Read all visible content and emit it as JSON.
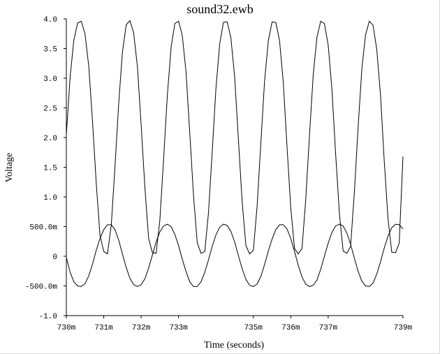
{
  "window": {
    "title": "sound32.ewb"
  },
  "chart_data": {
    "type": "line",
    "title": "sound32.ewb",
    "xlabel": "Time (seconds)",
    "ylabel": "Voltage",
    "xlim": [
      0.73,
      0.739
    ],
    "ylim": [
      -1.0,
      4.0
    ],
    "grid": false,
    "x_ticks": [
      {
        "value": 0.73,
        "label": "730m"
      },
      {
        "value": 0.731,
        "label": "731m"
      },
      {
        "value": 0.732,
        "label": "732m"
      },
      {
        "value": 0.733,
        "label": "733m"
      },
      {
        "value": 0.735,
        "label": "735m"
      },
      {
        "value": 0.736,
        "label": "736m"
      },
      {
        "value": 0.737,
        "label": "737m"
      },
      {
        "value": 0.739,
        "label": "739m"
      }
    ],
    "y_ticks": [
      {
        "value": 4.0,
        "label": "4.0"
      },
      {
        "value": 3.5,
        "label": "3.5"
      },
      {
        "value": 3.0,
        "label": "3.0"
      },
      {
        "value": 2.5,
        "label": "2.5"
      },
      {
        "value": 2.0,
        "label": "2.0"
      },
      {
        "value": 1.5,
        "label": "1.5"
      },
      {
        "value": 1.0,
        "label": "1.0"
      },
      {
        "value": 0.5,
        "label": "500.0m"
      },
      {
        "value": 0.0,
        "label": "0"
      },
      {
        "value": -0.5,
        "label": "-500.0m"
      },
      {
        "value": -1.0,
        "label": "-1.0"
      }
    ],
    "series": [
      {
        "x": [
          0.73,
          0.7301,
          0.7302,
          0.7303,
          0.7304,
          0.7305,
          0.7306,
          0.7307,
          0.7308,
          0.7309,
          0.731,
          0.7311,
          0.7312,
          0.7313,
          0.7314,
          0.7315,
          0.7316,
          0.7317,
          0.7318,
          0.7319,
          0.732,
          0.7321,
          0.7322,
          0.7323,
          0.7324,
          0.7325,
          0.7326,
          0.7327,
          0.7328,
          0.7329,
          0.733,
          0.7331,
          0.7332,
          0.7333,
          0.7334,
          0.7335,
          0.7336,
          0.7337,
          0.7338,
          0.7339,
          0.734,
          0.7341,
          0.7342,
          0.7343,
          0.7344,
          0.7345,
          0.7346,
          0.7347,
          0.7348,
          0.7349,
          0.735,
          0.7351,
          0.7352,
          0.7353,
          0.7354,
          0.7355,
          0.7356,
          0.7357,
          0.7358,
          0.7359,
          0.736,
          0.7361,
          0.7362,
          0.7363,
          0.7364,
          0.7365,
          0.7366,
          0.7367,
          0.7368,
          0.7369,
          0.737,
          0.7371,
          0.7372,
          0.7373,
          0.7374,
          0.7375,
          0.7376,
          0.7377,
          0.7378,
          0.7379,
          0.738,
          0.7381,
          0.7382,
          0.7383,
          0.7384,
          0.7385,
          0.7386,
          0.7387,
          0.7388,
          0.7389,
          0.739
        ],
        "y": [
          2.05,
          3.02,
          3.64,
          3.93,
          3.96,
          3.74,
          3.2,
          2.27,
          1.23,
          0.35,
          0.08,
          0.04,
          0.52,
          1.5,
          2.58,
          3.44,
          3.9,
          3.97,
          3.76,
          3.19,
          2.21,
          1.15,
          0.3,
          0.06,
          0.05,
          0.61,
          1.63,
          2.71,
          3.52,
          3.92,
          3.96,
          3.72,
          3.1,
          2.08,
          1.02,
          0.23,
          0.05,
          0.08,
          0.73,
          1.77,
          2.83,
          3.58,
          3.94,
          3.95,
          3.68,
          3.02,
          1.96,
          0.92,
          0.18,
          0.04,
          0.1,
          0.84,
          1.91,
          2.95,
          3.63,
          3.95,
          3.94,
          3.63,
          2.93,
          1.84,
          0.82,
          0.13,
          0.04,
          0.13,
          0.96,
          2.03,
          3.06,
          3.69,
          3.96,
          3.92,
          3.56,
          2.82,
          1.72,
          0.72,
          0.09,
          0.05,
          0.17,
          1.08,
          2.16,
          3.16,
          3.73,
          3.96,
          3.89,
          3.48,
          2.7,
          1.6,
          0.63,
          0.07,
          0.06,
          0.22,
          1.68
        ]
      },
      {
        "x": [
          0.73,
          0.7301,
          0.7302,
          0.7303,
          0.7304,
          0.7305,
          0.7306,
          0.7307,
          0.7308,
          0.7309,
          0.731,
          0.7311,
          0.7312,
          0.7313,
          0.7314,
          0.7315,
          0.7316,
          0.7317,
          0.7318,
          0.7319,
          0.732,
          0.7321,
          0.7322,
          0.7323,
          0.7324,
          0.7325,
          0.7326,
          0.7327,
          0.7328,
          0.7329,
          0.733,
          0.7331,
          0.7332,
          0.7333,
          0.7334,
          0.7335,
          0.7336,
          0.7337,
          0.7338,
          0.7339,
          0.734,
          0.7341,
          0.7342,
          0.7343,
          0.7344,
          0.7345,
          0.7346,
          0.7347,
          0.7348,
          0.7349,
          0.735,
          0.7351,
          0.7352,
          0.7353,
          0.7354,
          0.7355,
          0.7356,
          0.7357,
          0.7358,
          0.7359,
          0.736,
          0.7361,
          0.7362,
          0.7363,
          0.7364,
          0.7365,
          0.7366,
          0.7367,
          0.7368,
          0.7369,
          0.737,
          0.7371,
          0.7372,
          0.7373,
          0.7374,
          0.7375,
          0.7376,
          0.7377,
          0.7378,
          0.7379,
          0.738,
          0.7381,
          0.7382,
          0.7383,
          0.7384,
          0.7385,
          0.7386,
          0.7387,
          0.7388,
          0.7389,
          0.739
        ],
        "y": [
          -0.02,
          -0.27,
          -0.43,
          -0.5,
          -0.51,
          -0.46,
          -0.33,
          -0.13,
          0.1,
          0.3,
          0.45,
          0.53,
          0.53,
          0.45,
          0.27,
          0.04,
          -0.19,
          -0.37,
          -0.48,
          -0.51,
          -0.48,
          -0.38,
          -0.2,
          0.02,
          0.24,
          0.41,
          0.51,
          0.54,
          0.5,
          0.37,
          0.18,
          -0.05,
          -0.26,
          -0.43,
          -0.51,
          -0.51,
          -0.43,
          -0.27,
          -0.06,
          0.17,
          0.36,
          0.49,
          0.54,
          0.52,
          0.42,
          0.24,
          0.01,
          -0.21,
          -0.39,
          -0.49,
          -0.51,
          -0.47,
          -0.34,
          -0.14,
          0.09,
          0.29,
          0.45,
          0.53,
          0.53,
          0.46,
          0.3,
          0.08,
          -0.15,
          -0.35,
          -0.47,
          -0.51,
          -0.49,
          -0.4,
          -0.22,
          0.0,
          0.22,
          0.4,
          0.51,
          0.54,
          0.51,
          0.39,
          0.2,
          -0.03,
          -0.25,
          -0.42,
          -0.5,
          -0.51,
          -0.45,
          -0.3,
          -0.09,
          0.14,
          0.34,
          0.48,
          0.54,
          0.53,
          0.46
        ]
      }
    ]
  }
}
